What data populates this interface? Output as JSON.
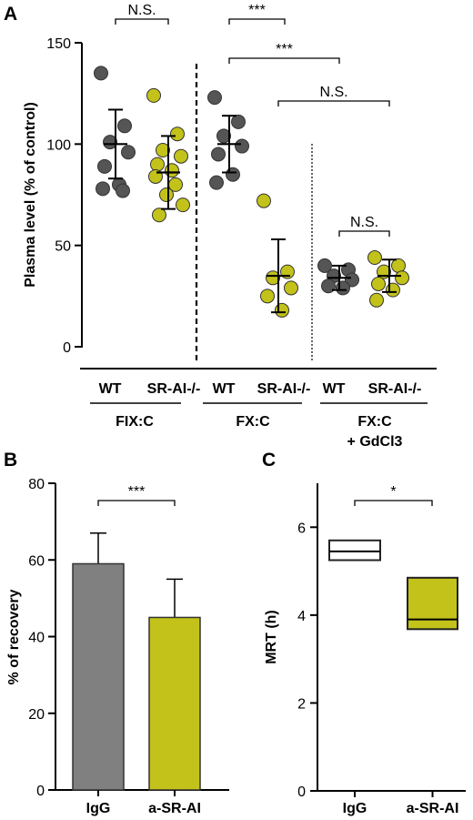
{
  "chart_data": [
    {
      "panel": "A",
      "type": "scatter",
      "ylabel": "Plasma level (% of control)",
      "ylim": [
        0,
        150
      ],
      "yticks": [
        "0",
        "50",
        "100",
        "150"
      ],
      "groups": [
        {
          "label": "FIX:C",
          "categories": [
            "WT",
            "SR-AI-/-"
          ],
          "series": [
            {
              "category": "WT",
              "color": "#555555",
              "points": [
                135,
                109,
                101,
                96,
                89,
                80,
                78,
                77
              ],
              "mean": 100,
              "sd": 17
            },
            {
              "category": "SR-AI-/-",
              "color": "#c2c21a",
              "points": [
                124,
                105,
                97,
                94,
                90,
                87,
                84,
                80,
                75,
                70,
                65
              ],
              "mean": 86,
              "sd": 18
            }
          ]
        },
        {
          "label": "FX:C",
          "categories": [
            "WT",
            "SR-AI-/-"
          ],
          "series": [
            {
              "category": "WT",
              "color": "#555555",
              "points": [
                123,
                111,
                104,
                99,
                95,
                85,
                81
              ],
              "mean": 100,
              "sd": 14
            },
            {
              "category": "SR-AI-/-",
              "color": "#c2c21a",
              "points": [
                72,
                37,
                34,
                29,
                25,
                18
              ],
              "mean": 35,
              "sd": 18
            }
          ]
        },
        {
          "label": "FX:C",
          "label2": "+ GdCl3",
          "categories": [
            "WT",
            "SR-AI-/-"
          ],
          "series": [
            {
              "category": "WT",
              "color": "#555555",
              "points": [
                40,
                38,
                35,
                33,
                30,
                29
              ],
              "mean": 34,
              "sd": 6
            },
            {
              "category": "SR-AI-/-",
              "color": "#c2c21a",
              "points": [
                44,
                40,
                37,
                34,
                31,
                28,
                23
              ],
              "mean": 35,
              "sd": 8
            }
          ]
        }
      ],
      "annotations": [
        {
          "text": "N.S.",
          "from": [
            0,
            0
          ],
          "to": [
            0,
            1
          ]
        },
        {
          "text": "***",
          "from": [
            1,
            0
          ],
          "to": [
            1,
            1
          ]
        },
        {
          "text": "***",
          "from": [
            1,
            0
          ],
          "to": [
            2,
            0
          ]
        },
        {
          "text": "N.S.",
          "from": [
            1,
            1
          ],
          "to": [
            2,
            1
          ]
        },
        {
          "text": "N.S.",
          "from": [
            2,
            0
          ],
          "to": [
            2,
            1
          ]
        }
      ]
    },
    {
      "panel": "B",
      "type": "bar",
      "ylabel": "% of recovery",
      "ylim": [
        0,
        80
      ],
      "yticks": [
        "0",
        "20",
        "40",
        "60",
        "80"
      ],
      "categories": [
        "IgG",
        "a-SR-AI"
      ],
      "values": [
        59,
        45
      ],
      "errors": [
        8,
        10
      ],
      "colors": [
        "#808080",
        "#c2c21a"
      ],
      "annotation": "***"
    },
    {
      "panel": "C",
      "type": "box",
      "ylabel": "MRT (h)",
      "ylim": [
        0,
        7
      ],
      "yticks": [
        "0",
        "2",
        "4",
        "6"
      ],
      "categories": [
        "IgG",
        "a-SR-AI"
      ],
      "boxes": [
        {
          "low": 5.25,
          "median": 5.45,
          "high": 5.7
        },
        {
          "low": 3.68,
          "median": 3.9,
          "high": 4.85
        }
      ],
      "colors": [
        "#ffffff",
        "#c2c21a"
      ],
      "annotation": "*"
    }
  ]
}
